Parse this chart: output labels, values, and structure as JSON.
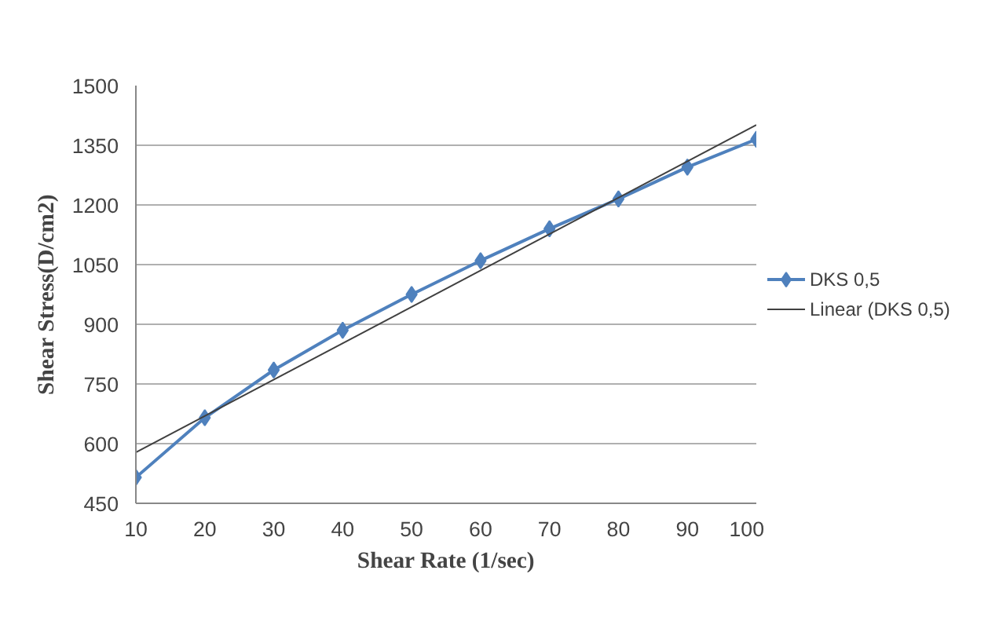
{
  "chart_data": {
    "type": "line",
    "xlabel": "Shear Rate (1/sec)",
    "ylabel": "Shear Stress(D/cm2)",
    "x": [
      10,
      20,
      30,
      40,
      50,
      60,
      70,
      80,
      90,
      100
    ],
    "series": [
      {
        "name": "DKS  0,5",
        "color": "#4f81bd",
        "marker": "diamond",
        "values": [
          515,
          665,
          785,
          885,
          975,
          1060,
          1140,
          1215,
          1295,
          1365
        ]
      },
      {
        "name": "Linear (DKS  0,5)",
        "color": "#404040",
        "marker": "none",
        "x": [
          10,
          100
        ],
        "values": [
          578,
          1401
        ]
      }
    ],
    "xlim": [
      10,
      100
    ],
    "xticks": [
      10,
      20,
      30,
      40,
      50,
      60,
      70,
      80,
      90,
      100
    ],
    "ylim": [
      450,
      1500
    ],
    "yticks": [
      450,
      600,
      750,
      900,
      1050,
      1200,
      1350,
      1500
    ],
    "grid": "y",
    "legend": "right"
  }
}
